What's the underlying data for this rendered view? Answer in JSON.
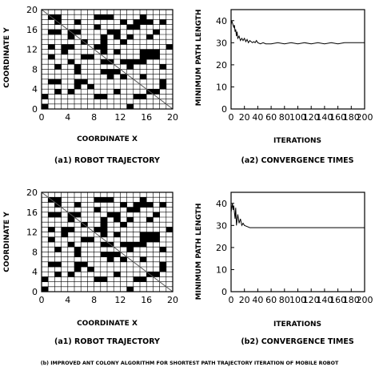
{
  "caption": "(b) IMPROVED ANT COLONY ALGORITHM FOR SHORTEST PATH TRAJECTORY ITERATION OF MOBILE ROBOT",
  "chart_data": [
    {
      "type": "grid-map",
      "caption": "(a1) ROBOT TRAJECTORY",
      "xlabel": "COORDINATE X",
      "ylabel": "COORDINATE Y",
      "xlim": [
        0,
        20
      ],
      "ylim": [
        0,
        20
      ],
      "xticks": [
        0,
        4,
        8,
        12,
        16,
        20
      ],
      "yticks": [
        0,
        4,
        8,
        12,
        16,
        20
      ],
      "obstacle_rows_top_to_bottom": [
        "....................",
        ".##.....###....#....",
        "..#..#......#.###.#.",
        "........#....##.....",
        ".##.##....##.....#..",
        "....#....#.#.#..#...",
        "......#..#..#.......",
        ".#.##...##.........#",
        "...#.....#.#...###..",
        ".#....##.......###..",
        "....#....##.####....",
        "..#..#.......#....#.",
        ".....#...###........",
        "..........#.#..#....",
        ".##..##...........#.",
        ".....#.#..........#.",
        "..#.#......#....##..",
        "#.......##....##....",
        "....................",
        "#............#......"
      ],
      "path": [
        [
          0,
          20
        ],
        [
          20,
          0
        ]
      ]
    },
    {
      "type": "line",
      "caption": "(a2) CONVERGENCE TIMES",
      "xlabel": "ITERATIONS",
      "ylabel": "MINIMUM PATH LENGTH",
      "xlim": [
        0,
        200
      ],
      "ylim": [
        0,
        45
      ],
      "xticks": [
        0,
        20,
        40,
        60,
        80,
        100,
        120,
        140,
        160,
        180,
        200
      ],
      "yticks": [
        0,
        10,
        20,
        30,
        40
      ],
      "series": [
        {
          "x": [
            0,
            1,
            2,
            3,
            4,
            5,
            6,
            7,
            8,
            9,
            10,
            12,
            14,
            16,
            18,
            20,
            22,
            24,
            26,
            28,
            30,
            32,
            34,
            36,
            38,
            40,
            44,
            48,
            52,
            60,
            70,
            80,
            90,
            100,
            110,
            120,
            130,
            140,
            150,
            160,
            170,
            180,
            190,
            200
          ],
          "y": [
            38,
            40,
            39,
            38,
            37,
            38,
            35,
            36,
            33,
            35,
            32,
            33,
            31,
            32,
            31,
            32,
            30.5,
            31.5,
            30,
            31,
            30.5,
            30,
            30.5,
            30,
            31,
            30,
            29.5,
            30,
            29.5,
            29.5,
            30,
            29.5,
            30,
            29.5,
            30,
            29.5,
            30,
            29.5,
            30,
            29.5,
            30,
            30,
            30,
            30
          ]
        }
      ]
    },
    {
      "type": "grid-map",
      "caption": "(a1) ROBOT TRAJECTORY",
      "xlabel": "COORDINATE X",
      "ylabel": "COORDINATE Y",
      "xlim": [
        0,
        20
      ],
      "ylim": [
        0,
        20
      ],
      "xticks": [
        0,
        4,
        8,
        12,
        16,
        20
      ],
      "yticks": [
        0,
        4,
        8,
        12,
        16,
        20
      ],
      "obstacle_rows_top_to_bottom": [
        "....................",
        ".##.....###....#....",
        "..#..#......#.###.#.",
        "........#....##.....",
        ".##.##....##.....#..",
        "....#....#.#.#..#...",
        "......#..#..#.......",
        ".#.##...##.........#",
        "...#.....#.#...###..",
        ".#....##.......###..",
        "....#....##.####....",
        "..#..#.......#....#.",
        ".....#...###........",
        "..........#.#..#....",
        ".##..##...........#.",
        ".....#.#..........#.",
        "..#.#......#....##..",
        "#.......##....##....",
        "....................",
        "#............#......"
      ],
      "path": [
        [
          0,
          20
        ],
        [
          20,
          0
        ]
      ]
    },
    {
      "type": "line",
      "caption": "(b2) CONVERGENCE TIMES",
      "xlabel": "ITERATIONS",
      "ylabel": "MINIMUM PATH LENGTH",
      "xlim": [
        0,
        200
      ],
      "ylim": [
        0,
        45
      ],
      "xticks": [
        0,
        20,
        40,
        60,
        80,
        100,
        120,
        140,
        160,
        180,
        200
      ],
      "yticks": [
        0,
        10,
        20,
        30,
        40
      ],
      "series": [
        {
          "x": [
            0,
            2,
            3,
            4,
            6,
            7,
            8,
            10,
            12,
            14,
            16,
            18,
            20,
            24,
            28,
            32,
            36,
            40,
            60,
            100,
            140,
            200
          ],
          "y": [
            36,
            40,
            37,
            39,
            33,
            38,
            30,
            35,
            31,
            33,
            30,
            31,
            30,
            29.5,
            29,
            29,
            29,
            29,
            29,
            29,
            29,
            29
          ]
        }
      ]
    }
  ]
}
